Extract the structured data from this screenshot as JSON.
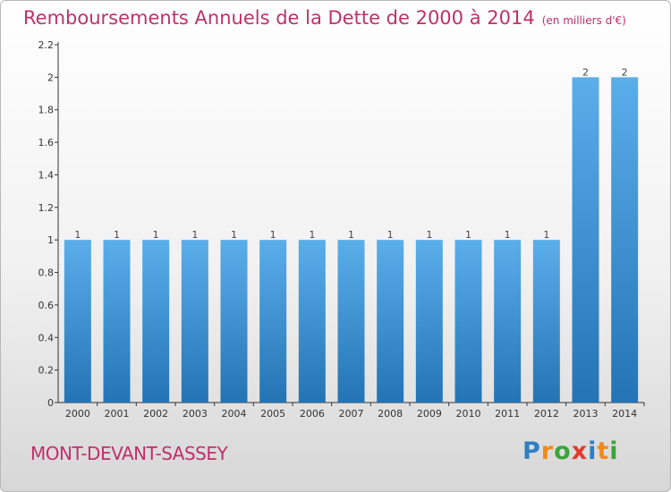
{
  "title": "Remboursements Annuels de la Dette de 2000 à 2014",
  "subtitle": "(en milliers d'€)",
  "location": "MONT-DEVANT-SASSEY",
  "brand": {
    "letters": [
      "P",
      "r",
      "o",
      "x",
      "i",
      "t",
      "i"
    ],
    "colors": [
      "#2f7fc4",
      "#f08a1c",
      "#3aa53a",
      "#e23b2e",
      "#2f7fc4",
      "#f08a1c",
      "#3aa53a"
    ]
  },
  "colors": {
    "title": "#c0306a",
    "bar_top": "#5aaeea",
    "bar_bottom": "#2474b5",
    "axis": "#333333"
  },
  "chart_data": {
    "type": "bar",
    "categories": [
      "2000",
      "2001",
      "2002",
      "2003",
      "2004",
      "2005",
      "2006",
      "2007",
      "2008",
      "2009",
      "2010",
      "2011",
      "2012",
      "2013",
      "2014"
    ],
    "values": [
      1,
      1,
      1,
      1,
      1,
      1,
      1,
      1,
      1,
      1,
      1,
      1,
      1,
      2,
      2
    ],
    "value_labels": [
      "1",
      "1",
      "1",
      "1",
      "1",
      "1",
      "1",
      "1",
      "1",
      "1",
      "1",
      "1",
      "1",
      "2",
      "2"
    ],
    "yticks": [
      "0",
      "0.2",
      "0.4",
      "0.6",
      "0.8",
      "1",
      "1.2",
      "1.4",
      "1.6",
      "1.8",
      "2",
      "2.2"
    ],
    "ylim": [
      0,
      2.2
    ],
    "grid": false
  }
}
